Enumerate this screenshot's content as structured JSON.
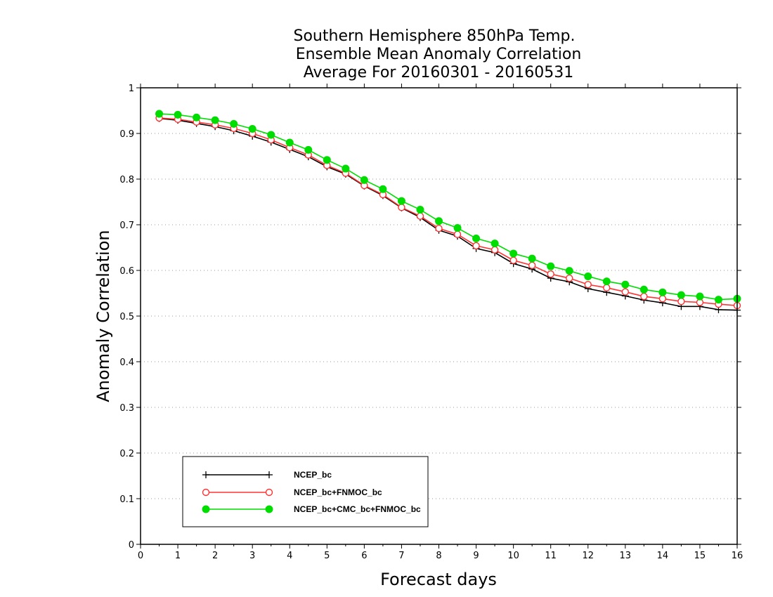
{
  "chart_data": {
    "type": "line",
    "title": [
      "Southern Hemisphere 850hPa Temp.",
      "Ensemble Mean Anomaly Correlation",
      "Average For 20160301 - 20160531"
    ],
    "xlabel": "Forecast days",
    "ylabel": "Anomaly Correlation",
    "xlim": [
      0,
      16
    ],
    "ylim": [
      0,
      1
    ],
    "xticks": [
      "0",
      "1",
      "2",
      "3",
      "4",
      "5",
      "6",
      "7",
      "8",
      "9",
      "10",
      "11",
      "12",
      "13",
      "14",
      "15",
      "16"
    ],
    "yticks": [
      "0",
      "0.1",
      "0.2",
      "0.3",
      "0.4",
      "0.5",
      "0.6",
      "0.7",
      "0.8",
      "0.9",
      "1"
    ],
    "grid": "horizontal dotted",
    "legend_position": "bottom-left",
    "x": [
      0.5,
      1,
      1.5,
      2,
      2.5,
      3,
      3.5,
      4,
      4.5,
      5,
      5.5,
      6,
      6.5,
      7,
      7.5,
      8,
      8.5,
      9,
      9.5,
      10,
      10.5,
      11,
      11.5,
      12,
      12.5,
      13,
      13.5,
      14,
      14.5,
      15,
      15.5,
      16
    ],
    "series": [
      {
        "name": "NCEP_bc",
        "color": "#000000",
        "marker": "plus",
        "values": [
          0.933,
          0.929,
          0.922,
          0.915,
          0.906,
          0.894,
          0.881,
          0.865,
          0.849,
          0.827,
          0.811,
          0.785,
          0.764,
          0.737,
          0.716,
          0.688,
          0.675,
          0.648,
          0.639,
          0.615,
          0.603,
          0.583,
          0.575,
          0.56,
          0.552,
          0.544,
          0.535,
          0.529,
          0.521,
          0.521,
          0.514,
          0.513
        ]
      },
      {
        "name": "NCEP_bc+FNMOC_bc",
        "color": "#ff3333",
        "marker": "open-circle",
        "values": [
          0.934,
          0.931,
          0.925,
          0.919,
          0.911,
          0.9,
          0.886,
          0.869,
          0.853,
          0.83,
          0.813,
          0.786,
          0.766,
          0.738,
          0.719,
          0.692,
          0.679,
          0.654,
          0.645,
          0.622,
          0.611,
          0.592,
          0.583,
          0.569,
          0.562,
          0.553,
          0.543,
          0.538,
          0.532,
          0.53,
          0.526,
          0.523
        ]
      },
      {
        "name": "NCEP_bc+CMC_bc+FNMOC_bc",
        "color": "#00dd00",
        "marker": "filled-circle",
        "values": [
          0.943,
          0.941,
          0.935,
          0.929,
          0.921,
          0.91,
          0.897,
          0.88,
          0.864,
          0.842,
          0.823,
          0.798,
          0.778,
          0.752,
          0.733,
          0.708,
          0.693,
          0.67,
          0.659,
          0.637,
          0.626,
          0.609,
          0.599,
          0.587,
          0.576,
          0.569,
          0.558,
          0.552,
          0.546,
          0.543,
          0.536,
          0.538
        ]
      }
    ]
  }
}
